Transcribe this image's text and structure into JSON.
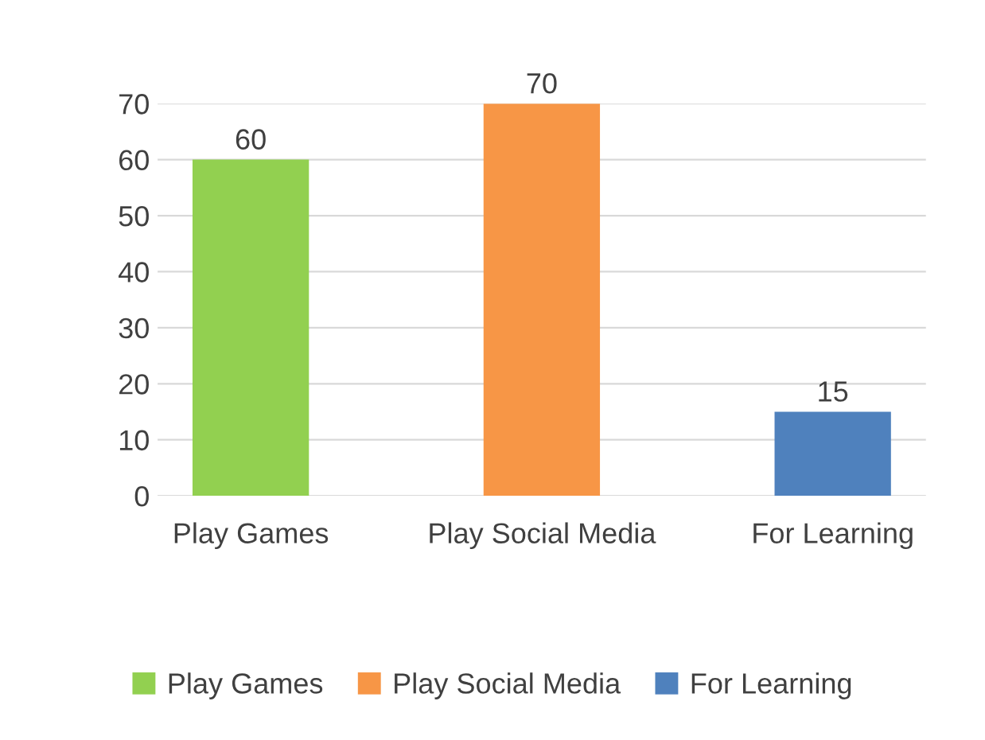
{
  "chart_data": {
    "type": "bar",
    "categories": [
      "Play Games",
      "Play Social Media",
      "For Learning"
    ],
    "series": [
      {
        "name": "Play Games",
        "color": "#92d050",
        "values": [
          60,
          null,
          null
        ]
      },
      {
        "name": "Play Social Media",
        "color": "#f79646",
        "values": [
          null,
          70,
          null
        ]
      },
      {
        "name": "For Learning",
        "color": "#4f81bd",
        "values": [
          null,
          null,
          15
        ]
      }
    ],
    "ylim": [
      0,
      70
    ],
    "yticks": [
      0,
      10,
      20,
      30,
      40,
      50,
      60,
      70
    ],
    "grid": "y",
    "data_labels": true,
    "legend": "bottom"
  }
}
